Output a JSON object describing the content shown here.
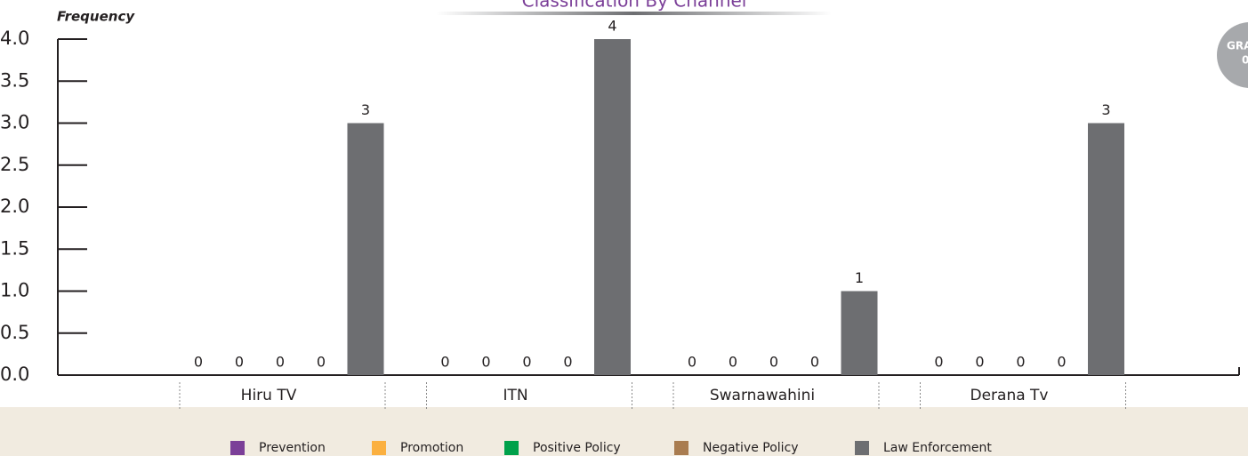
{
  "chart_data": {
    "type": "bar",
    "title": "Classification By Channel",
    "ylabel": "Frequency",
    "badge": [
      "GRA",
      "0"
    ],
    "categories": [
      "Hiru TV",
      "ITN",
      "Swarnawahini",
      "Derana Tv"
    ],
    "series": [
      {
        "name": "Prevention",
        "color": "#7b3f98",
        "values": [
          0,
          0,
          0,
          0
        ]
      },
      {
        "name": "Promotion",
        "color": "#fbb040",
        "values": [
          0,
          0,
          0,
          0
        ]
      },
      {
        "name": "Positive Policy",
        "color": "#00a14b",
        "values": [
          0,
          0,
          0,
          0
        ]
      },
      {
        "name": "Negative Policy",
        "color": "#a97c50",
        "values": [
          0,
          0,
          0,
          0
        ]
      },
      {
        "name": "Law Enforcement",
        "color": "#6d6e71",
        "values": [
          3,
          4,
          1,
          3
        ]
      }
    ],
    "ylim": [
      0,
      4
    ],
    "yticks": [
      {
        "value": 0,
        "label": "0.0"
      },
      {
        "value": 0.5,
        "label": "0.5"
      },
      {
        "value": 1,
        "label": "1.0"
      },
      {
        "value": 1.5,
        "label": "1.5"
      },
      {
        "value": 2,
        "label": "2.0"
      },
      {
        "value": 2.5,
        "label": "2.5"
      },
      {
        "value": 3,
        "label": "3.0"
      },
      {
        "value": 3.5,
        "label": "3.5"
      },
      {
        "value": 4,
        "label": "4.0"
      }
    ],
    "legend": "bottom"
  }
}
